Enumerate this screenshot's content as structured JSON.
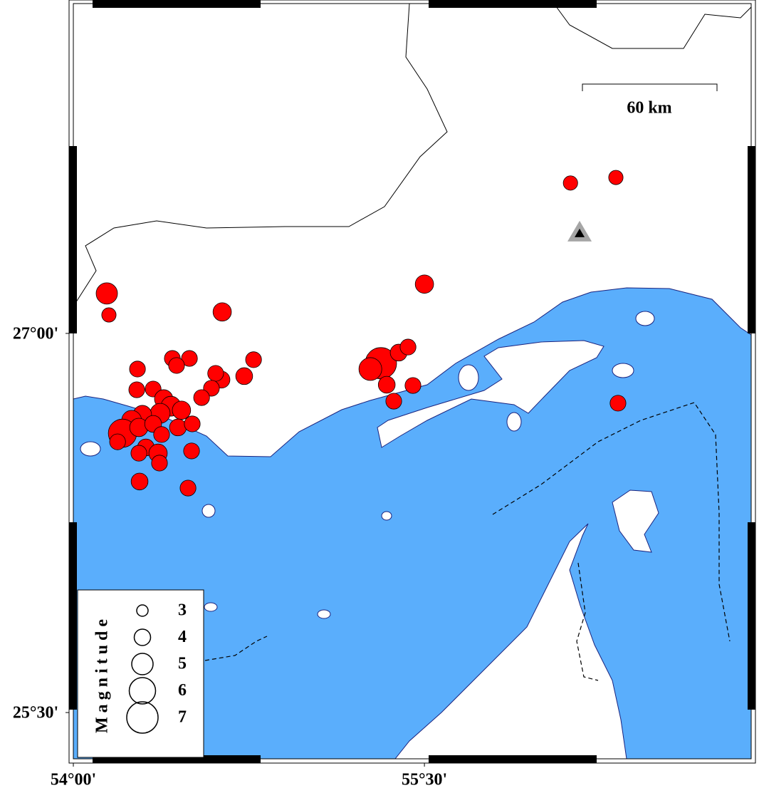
{
  "map": {
    "lonlim": [
      54,
      56.896
    ],
    "latlim": [
      25.317,
      28.305
    ],
    "lon_ticks": [
      {
        "value": 54,
        "label": "54°00'"
      },
      {
        "value": 55.5,
        "label": "55°30'"
      }
    ],
    "lat_ticks": [
      {
        "value": 27,
        "label": "27°00'"
      },
      {
        "value": 25.5,
        "label": "25°30'"
      }
    ],
    "scale_bar": "60 km",
    "legend": {
      "title": "Magnitude",
      "magnitudes": [
        3,
        4,
        5,
        6,
        7
      ]
    },
    "event_color": "#ff0000",
    "station": {
      "lon": 56.163,
      "lat": 27.395
    },
    "events": [
      {
        "lon": 56.124,
        "lat": 27.595,
        "mag": 3.6
      },
      {
        "lon": 56.318,
        "lat": 27.617,
        "mag": 3.6
      },
      {
        "lon": 55.5,
        "lat": 27.195,
        "mag": 4.4
      },
      {
        "lon": 54.143,
        "lat": 27.158,
        "mag": 5.0
      },
      {
        "lon": 54.152,
        "lat": 27.073,
        "mag": 3.6
      },
      {
        "lon": 54.636,
        "lat": 27.085,
        "mag": 4.4
      },
      {
        "lon": 54.77,
        "lat": 26.896,
        "mag": 3.9
      },
      {
        "lon": 54.73,
        "lat": 26.831,
        "mag": 4.1
      },
      {
        "lon": 54.633,
        "lat": 26.817,
        "mag": 4.1
      },
      {
        "lon": 54.608,
        "lat": 26.842,
        "mag": 3.9
      },
      {
        "lon": 54.59,
        "lat": 26.783,
        "mag": 3.9
      },
      {
        "lon": 54.548,
        "lat": 26.746,
        "mag": 3.9
      },
      {
        "lon": 54.423,
        "lat": 26.901,
        "mag": 3.9
      },
      {
        "lon": 54.496,
        "lat": 26.901,
        "mag": 3.9
      },
      {
        "lon": 54.441,
        "lat": 26.873,
        "mag": 3.9
      },
      {
        "lon": 54.274,
        "lat": 26.859,
        "mag": 3.9
      },
      {
        "lon": 54.271,
        "lat": 26.777,
        "mag": 3.9
      },
      {
        "lon": 54.341,
        "lat": 26.78,
        "mag": 3.9
      },
      {
        "lon": 54.386,
        "lat": 26.741,
        "mag": 4.4
      },
      {
        "lon": 54.417,
        "lat": 26.712,
        "mag": 4.7
      },
      {
        "lon": 54.462,
        "lat": 26.696,
        "mag": 4.4
      },
      {
        "lon": 54.371,
        "lat": 26.684,
        "mag": 4.7
      },
      {
        "lon": 54.295,
        "lat": 26.679,
        "mag": 4.4
      },
      {
        "lon": 54.249,
        "lat": 26.656,
        "mag": 4.7
      },
      {
        "lon": 54.21,
        "lat": 26.605,
        "mag": 6.4
      },
      {
        "lon": 54.189,
        "lat": 26.571,
        "mag": 3.9
      },
      {
        "lon": 54.28,
        "lat": 26.628,
        "mag": 4.4
      },
      {
        "lon": 54.341,
        "lat": 26.642,
        "mag": 4.1
      },
      {
        "lon": 54.447,
        "lat": 26.628,
        "mag": 4.1
      },
      {
        "lon": 54.508,
        "lat": 26.642,
        "mag": 3.9
      },
      {
        "lon": 54.377,
        "lat": 26.6,
        "mag": 3.9
      },
      {
        "lon": 54.31,
        "lat": 26.549,
        "mag": 4.1
      },
      {
        "lon": 54.28,
        "lat": 26.526,
        "mag": 3.9
      },
      {
        "lon": 54.362,
        "lat": 26.526,
        "mag": 4.4
      },
      {
        "lon": 54.368,
        "lat": 26.487,
        "mag": 3.9
      },
      {
        "lon": 54.505,
        "lat": 26.535,
        "mag": 3.9
      },
      {
        "lon": 54.283,
        "lat": 26.414,
        "mag": 4.1
      },
      {
        "lon": 54.49,
        "lat": 26.388,
        "mag": 3.9
      },
      {
        "lon": 55.314,
        "lat": 26.882,
        "mag": 7.0
      },
      {
        "lon": 55.269,
        "lat": 26.859,
        "mag": 5.3
      },
      {
        "lon": 55.39,
        "lat": 26.924,
        "mag": 4.1
      },
      {
        "lon": 55.43,
        "lat": 26.946,
        "mag": 3.9
      },
      {
        "lon": 55.339,
        "lat": 26.797,
        "mag": 4.1
      },
      {
        "lon": 55.369,
        "lat": 26.732,
        "mag": 3.9
      },
      {
        "lon": 55.451,
        "lat": 26.794,
        "mag": 3.9
      },
      {
        "lon": 56.327,
        "lat": 26.724,
        "mag": 3.9
      }
    ]
  }
}
